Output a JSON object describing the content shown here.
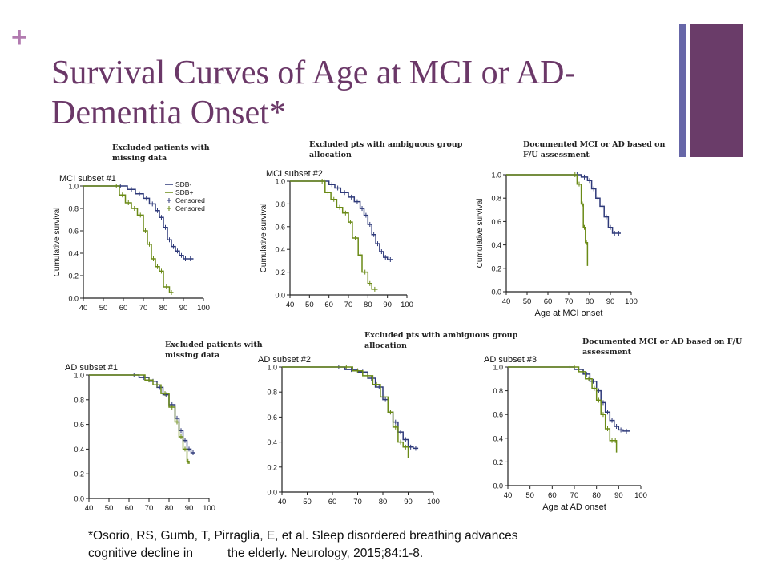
{
  "plus_mark": "+",
  "title_line1": "Survival Curves of Age at MCI or AD-",
  "title_line2": "Dementia Onset*",
  "colors": {
    "accent": "#6a3c69",
    "accent_thin": "#6767a8",
    "plus": "#b27bb0",
    "sdb_minus": "#2f3a7a",
    "sdb_plus": "#6a8a16"
  },
  "notes": [
    "Excluded patients with missing data",
    "Excluded pts with ambiguous group allocation",
    "Documented MCI or AD based on F/U assessment",
    "Excluded patients with missing data",
    "Excluded pts with ambiguous group allocation",
    "Documented MCI or AD based on F/U assessment"
  ],
  "citation_line1": "*Osorio, RS, Gumb, T, Pirraglia, E, et al. Sleep disordered breathing advances",
  "citation_line2": "cognitive decline in          the elderly. Neurology, 2015;84:1-8.",
  "chart_data": [
    {
      "type": "line",
      "title": "MCI subset #1",
      "xlabel": "",
      "ylabel": "Cumulative survival",
      "xlim": [
        40,
        100
      ],
      "ylim": [
        0,
        1
      ],
      "xticks": [
        40,
        50,
        60,
        70,
        80,
        90,
        100
      ],
      "yticks": [
        "0.0",
        "0.2",
        "0.4",
        "0.6",
        "0.8",
        "1.0"
      ],
      "legend": [
        "SDB-",
        "SDB+",
        "Censored",
        "Censored"
      ],
      "legend_position": "top-right",
      "series": [
        {
          "name": "SDB-",
          "x": [
            40,
            55,
            62,
            66,
            70,
            73,
            76,
            78,
            80,
            82,
            84,
            86,
            88,
            90,
            92,
            95
          ],
          "y": [
            1.0,
            1.0,
            0.97,
            0.93,
            0.89,
            0.84,
            0.78,
            0.72,
            0.63,
            0.52,
            0.46,
            0.42,
            0.38,
            0.35,
            0.35,
            0.35
          ]
        },
        {
          "name": "SDB+",
          "x": [
            40,
            55,
            58,
            61,
            64,
            67,
            70,
            72,
            74,
            76,
            78,
            80,
            83,
            85
          ],
          "y": [
            1.0,
            1.0,
            0.92,
            0.85,
            0.8,
            0.74,
            0.6,
            0.48,
            0.35,
            0.28,
            0.24,
            0.1,
            0.05,
            0.05
          ]
        }
      ]
    },
    {
      "type": "line",
      "title": "MCI subset #2",
      "xlabel": "",
      "ylabel": "Cumulative survival",
      "xlim": [
        40,
        100
      ],
      "ylim": [
        0,
        1
      ],
      "xticks": [
        40,
        50,
        60,
        70,
        80,
        90,
        100
      ],
      "yticks": [
        "0.0",
        "0.2",
        "0.4",
        "0.6",
        "0.8",
        "1.0"
      ],
      "legend": [],
      "legend_position": "none",
      "series": [
        {
          "name": "SDB-",
          "x": [
            40,
            55,
            60,
            63,
            66,
            70,
            73,
            76,
            78,
            80,
            82,
            84,
            86,
            88,
            90,
            93
          ],
          "y": [
            1.0,
            1.0,
            0.97,
            0.94,
            0.9,
            0.86,
            0.82,
            0.76,
            0.7,
            0.62,
            0.53,
            0.45,
            0.38,
            0.33,
            0.31,
            0.31
          ]
        },
        {
          "name": "SDB+",
          "x": [
            40,
            55,
            58,
            61,
            64,
            67,
            70,
            72,
            75,
            77,
            80,
            82,
            85
          ],
          "y": [
            1.0,
            1.0,
            0.9,
            0.84,
            0.77,
            0.72,
            0.64,
            0.5,
            0.35,
            0.2,
            0.1,
            0.05,
            0.05
          ]
        }
      ]
    },
    {
      "type": "line",
      "title": "",
      "xlabel": "Age at MCI onset",
      "ylabel": "Cumulative survival",
      "xlim": [
        40,
        100
      ],
      "ylim": [
        0,
        1
      ],
      "xticks": [
        40,
        50,
        60,
        70,
        80,
        90,
        100
      ],
      "yticks": [
        "0.0",
        "0.2",
        "0.4",
        "0.6",
        "0.8",
        "1.0"
      ],
      "legend": [],
      "legend_position": "none",
      "series": [
        {
          "name": "SDB-",
          "x": [
            40,
            72,
            76,
            79,
            81,
            83,
            85,
            87,
            89,
            91,
            93,
            95
          ],
          "y": [
            1.0,
            1.0,
            0.98,
            0.95,
            0.88,
            0.8,
            0.73,
            0.64,
            0.55,
            0.5,
            0.5,
            0.5
          ]
        },
        {
          "name": "SDB+",
          "x": [
            40,
            72,
            74,
            76,
            77,
            78,
            79
          ],
          "y": [
            1.0,
            1.0,
            0.92,
            0.75,
            0.55,
            0.42,
            0.22
          ]
        }
      ]
    },
    {
      "type": "line",
      "title": "AD subset #1",
      "xlabel": "",
      "ylabel": "",
      "xlim": [
        40,
        100
      ],
      "ylim": [
        0,
        1
      ],
      "xticks": [
        40,
        50,
        60,
        70,
        80,
        90,
        100
      ],
      "yticks": [
        "0.0",
        "0.2",
        "0.4",
        "0.6",
        "0.8",
        "1.0"
      ],
      "legend": [],
      "legend_position": "none",
      "series": [
        {
          "name": "SDB-",
          "x": [
            40,
            60,
            65,
            70,
            74,
            77,
            80,
            83,
            85,
            87,
            89,
            91,
            93
          ],
          "y": [
            1.0,
            1.0,
            0.98,
            0.95,
            0.9,
            0.84,
            0.76,
            0.65,
            0.55,
            0.47,
            0.4,
            0.37,
            0.37
          ]
        },
        {
          "name": "SDB+",
          "x": [
            40,
            62,
            68,
            72,
            76,
            80,
            83,
            85,
            87,
            89,
            90
          ],
          "y": [
            1.0,
            1.0,
            0.96,
            0.92,
            0.85,
            0.74,
            0.62,
            0.5,
            0.4,
            0.3,
            0.28
          ]
        }
      ]
    },
    {
      "type": "line",
      "title": "AD subset #2",
      "xlabel": "",
      "ylabel": "",
      "xlim": [
        40,
        100
      ],
      "ylim": [
        0,
        1
      ],
      "xticks": [
        40,
        50,
        60,
        70,
        80,
        90,
        100
      ],
      "yticks": [
        "0.0",
        "0.2",
        "0.4",
        "0.6",
        "0.8",
        "1.0"
      ],
      "legend": [],
      "legend_position": "none",
      "series": [
        {
          "name": "SDB-",
          "x": [
            40,
            60,
            65,
            70,
            74,
            77,
            80,
            82,
            84,
            86,
            88,
            90,
            92,
            94
          ],
          "y": [
            1.0,
            1.0,
            0.98,
            0.96,
            0.91,
            0.84,
            0.74,
            0.64,
            0.56,
            0.48,
            0.42,
            0.36,
            0.35,
            0.35
          ]
        },
        {
          "name": "SDB+",
          "x": [
            40,
            63,
            68,
            72,
            76,
            79,
            82,
            84,
            86,
            88,
            90
          ],
          "y": [
            1.0,
            1.0,
            0.97,
            0.93,
            0.86,
            0.76,
            0.64,
            0.52,
            0.4,
            0.36,
            0.27
          ]
        }
      ]
    },
    {
      "type": "line",
      "title": "AD subset #3",
      "xlabel": "Age at AD onset",
      "ylabel": "",
      "xlim": [
        40,
        100
      ],
      "ylim": [
        0,
        1
      ],
      "xticks": [
        40,
        50,
        60,
        70,
        80,
        90,
        100
      ],
      "yticks": [
        "0.0",
        "0.2",
        "0.4",
        "0.6",
        "0.8",
        "1.0"
      ],
      "legend": [],
      "legend_position": "none",
      "series": [
        {
          "name": "SDB-",
          "x": [
            40,
            66,
            70,
            74,
            77,
            80,
            82,
            84,
            86,
            88,
            90,
            92,
            95
          ],
          "y": [
            1.0,
            1.0,
            0.98,
            0.94,
            0.88,
            0.8,
            0.7,
            0.62,
            0.55,
            0.5,
            0.47,
            0.46,
            0.46
          ]
        },
        {
          "name": "SDB+",
          "x": [
            40,
            68,
            72,
            75,
            78,
            80,
            82,
            84,
            86,
            88,
            89
          ],
          "y": [
            1.0,
            1.0,
            0.96,
            0.9,
            0.82,
            0.72,
            0.6,
            0.48,
            0.38,
            0.38,
            0.28
          ]
        }
      ]
    }
  ]
}
